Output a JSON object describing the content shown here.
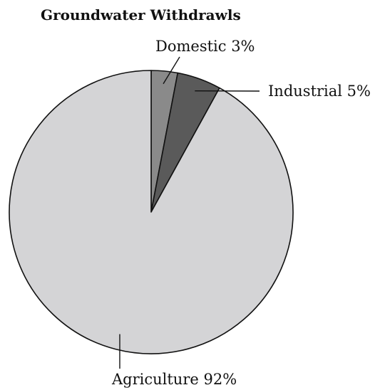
{
  "chart_data": {
    "type": "pie",
    "title": "Groundwater Withdrawls",
    "slices": [
      {
        "label": "Domestic",
        "value": 3,
        "display": "Domestic 3%",
        "color": "#8a8a8a"
      },
      {
        "label": "Industrial",
        "value": 5,
        "display": "Industrial 5%",
        "color": "#5a5a5a"
      },
      {
        "label": "Agriculture",
        "value": 92,
        "display": "Agriculture 92%",
        "color": "#d4d4d6"
      }
    ]
  }
}
